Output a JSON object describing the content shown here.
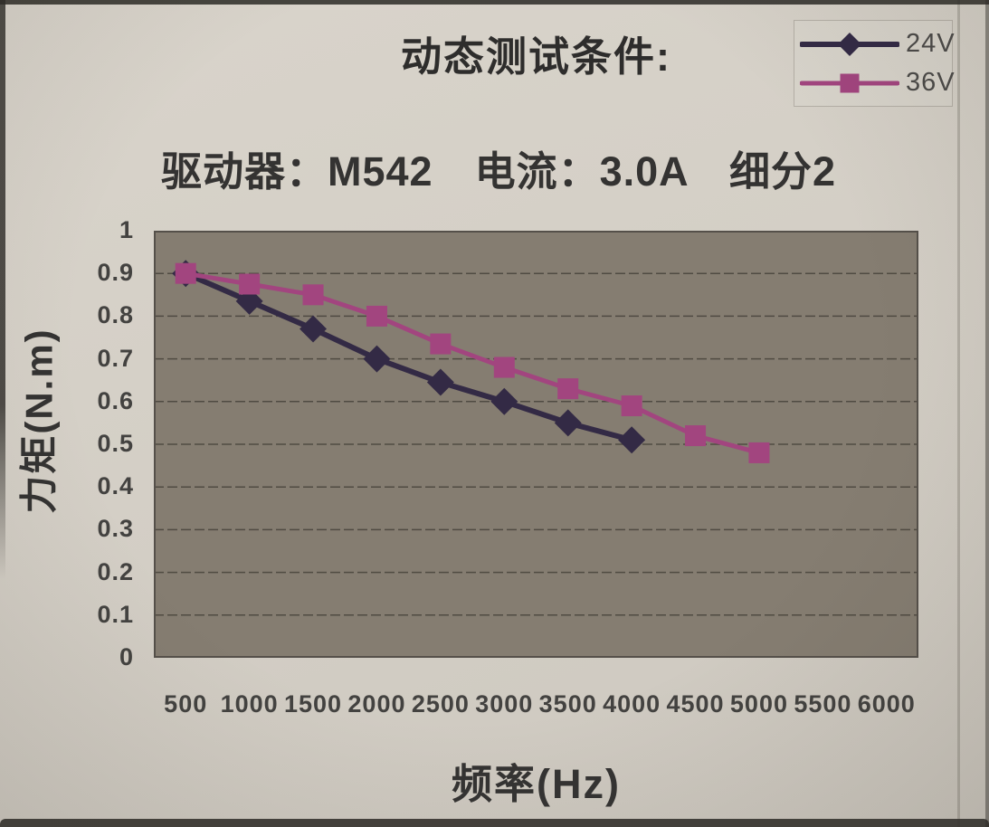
{
  "chart_data": {
    "type": "line",
    "title": "动态测试条件:",
    "subtitle": "驱动器：M542　电流：3.0A　细分2",
    "xlabel": "频率(Hz)",
    "ylabel": "力矩(N.m)",
    "categories": [
      "500",
      "1000",
      "1500",
      "2000",
      "2500",
      "3000",
      "3500",
      "4000",
      "4500",
      "5000",
      "5500",
      "6000"
    ],
    "ylim": [
      0,
      1
    ],
    "ytick_step": 0.1,
    "ytick_labels_top_to_bottom": [
      "1",
      "0.9",
      "0.8",
      "0.7",
      "0.6",
      "0.5",
      "0.4",
      "0.3",
      "0.2",
      "0.1",
      "0"
    ],
    "grid": true,
    "legend_position": "top-right",
    "colors": {
      "plot_bg": "#857d71",
      "gridline": "#4b463e",
      "plot_border": "#55504a",
      "paper": "#d5d0c7",
      "text": "#3a3a3a"
    },
    "series": [
      {
        "name": "24V",
        "color": "#332a45",
        "marker": "diamond",
        "x": [
          500,
          1000,
          1500,
          2000,
          2500,
          3000,
          3500,
          4000
        ],
        "values": [
          0.9,
          0.835,
          0.77,
          0.7,
          0.645,
          0.6,
          0.55,
          0.51
        ]
      },
      {
        "name": "36V",
        "color": "#a2457f",
        "marker": "square",
        "x": [
          500,
          1000,
          1500,
          2000,
          2500,
          3000,
          3500,
          4000,
          4500,
          5000
        ],
        "values": [
          0.9,
          0.875,
          0.85,
          0.8,
          0.735,
          0.68,
          0.63,
          0.59,
          0.52,
          0.48
        ]
      }
    ]
  }
}
